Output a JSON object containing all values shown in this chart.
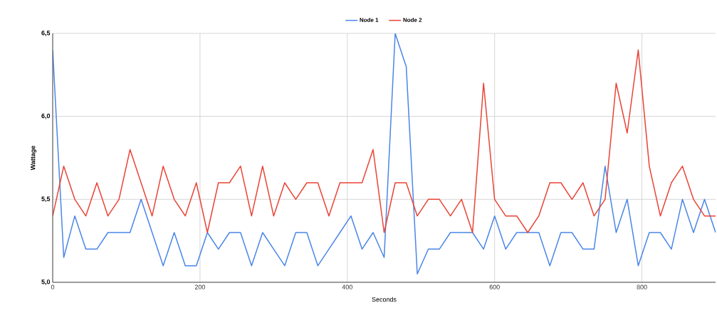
{
  "chart_data": {
    "type": "line",
    "xlabel": "Seconds",
    "ylabel": "Wattage",
    "x": [
      0,
      15,
      30,
      45,
      60,
      75,
      90,
      105,
      120,
      135,
      150,
      165,
      180,
      195,
      210,
      225,
      240,
      255,
      270,
      285,
      300,
      315,
      330,
      345,
      360,
      375,
      390,
      405,
      420,
      435,
      450,
      465,
      480,
      495,
      510,
      525,
      540,
      555,
      570,
      585,
      600,
      615,
      630,
      645,
      660,
      675,
      690,
      705,
      720,
      735,
      750,
      765,
      780,
      795,
      810,
      825,
      840,
      855,
      870,
      885,
      900
    ],
    "series": [
      {
        "name": "Node 1",
        "color": "#4a86e8",
        "values": [
          6.4,
          5.15,
          5.4,
          5.2,
          5.2,
          5.3,
          5.3,
          5.3,
          5.5,
          5.3,
          5.1,
          5.3,
          5.1,
          5.1,
          5.3,
          5.2,
          5.3,
          5.3,
          5.1,
          5.3,
          5.2,
          5.1,
          5.3,
          5.3,
          5.1,
          5.2,
          5.3,
          5.4,
          5.2,
          5.3,
          5.15,
          6.5,
          6.3,
          5.05,
          5.2,
          5.2,
          5.3,
          5.3,
          5.3,
          5.2,
          5.4,
          5.2,
          5.3,
          5.3,
          5.3,
          5.1,
          5.3,
          5.3,
          5.2,
          5.2,
          5.7,
          5.3,
          5.5,
          5.1,
          5.3,
          5.3,
          5.2,
          5.5,
          5.3,
          5.5,
          5.3
        ]
      },
      {
        "name": "Node 2",
        "color": "#ea4335",
        "values": [
          5.4,
          5.7,
          5.5,
          5.4,
          5.6,
          5.4,
          5.5,
          5.8,
          5.6,
          5.4,
          5.7,
          5.5,
          5.4,
          5.6,
          5.3,
          5.6,
          5.6,
          5.7,
          5.4,
          5.7,
          5.4,
          5.6,
          5.5,
          5.6,
          5.6,
          5.4,
          5.6,
          5.6,
          5.6,
          5.8,
          5.3,
          5.6,
          5.6,
          5.4,
          5.5,
          5.5,
          5.4,
          5.5,
          5.3,
          6.2,
          5.5,
          5.4,
          5.4,
          5.3,
          5.4,
          5.6,
          5.6,
          5.5,
          5.6,
          5.4,
          5.5,
          6.2,
          5.9,
          6.4,
          5.7,
          5.4,
          5.6,
          5.7,
          5.5,
          5.4,
          5.4
        ]
      }
    ],
    "xlim": [
      0,
      900
    ],
    "ylim": [
      5.0,
      6.5
    ],
    "xticks": [
      0,
      200,
      400,
      600,
      800
    ],
    "yticks": [
      {
        "value": 5.0,
        "label": "5,0"
      },
      {
        "value": 5.5,
        "label": "5,5"
      },
      {
        "value": 6.0,
        "label": "6,0"
      },
      {
        "value": 6.5,
        "label": "6,5"
      }
    ],
    "grid": true,
    "legend": "top",
    "marker": "none",
    "line_style": "solid"
  }
}
